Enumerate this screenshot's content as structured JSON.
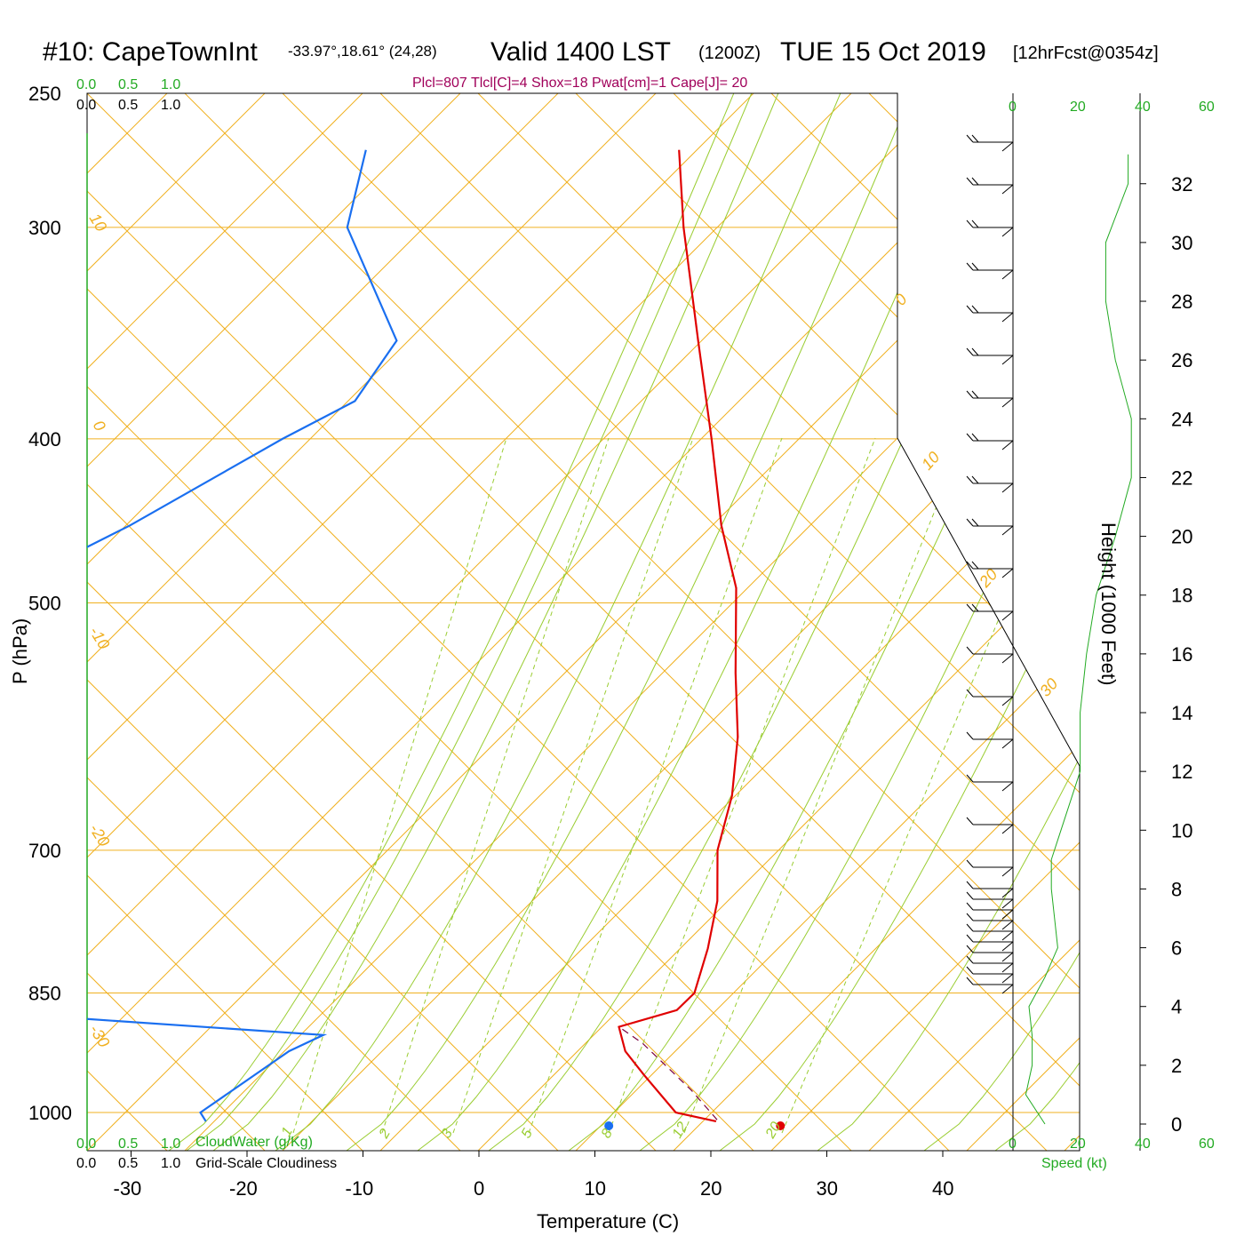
{
  "header": {
    "station": "#10: CapeTownInt",
    "coords": "-33.97°,18.61° (24,28)",
    "valid": "Valid 1400 LST",
    "zulu": "(1200Z)",
    "date": "TUE 15 Oct 2019",
    "forecast": "[12hrFcst@0354z]"
  },
  "params_line": "Plcl=807 Tlcl[C]=4 Shox=18 Pwat[cm]=1 Cape[J]= 20",
  "labels": {
    "cloudwater": "CloudWater (g/Kg)",
    "cloudiness": "Grid-Scale Cloudiness",
    "speed": "Speed (kt)",
    "height": "Height (1000 Feet)",
    "pressure": "P (hPa)",
    "temperature": "Temperature (C)"
  },
  "scale_ticks": [
    "0.0",
    "0.5",
    "1.0"
  ],
  "speed_ticks": [
    "0",
    "20",
    "40",
    "60"
  ],
  "colors": {
    "temperature": "#e00000",
    "dewpoint": "#1a6ff0",
    "isotherm": "#f0b020",
    "adiabat": "#9acd32",
    "speed_profile": "#22aa22",
    "params": "#a0005a"
  },
  "chart_data": {
    "type": "line",
    "title": "#10: CapeTownInt  Valid 1400 LST (1200Z) TUE 15 Oct 2019",
    "xlabel": "Temperature (C)",
    "ylabel": "P (hPa)",
    "xlim": [
      -35,
      35
    ],
    "ylim": [
      1050,
      250
    ],
    "y_scale": "log (pressure)",
    "x_ticks": [
      -30,
      -20,
      -10,
      0,
      10,
      20,
      30,
      40
    ],
    "y_ticks": [
      250,
      300,
      400,
      500,
      700,
      850,
      1000
    ],
    "height_ticks": [
      0,
      2,
      4,
      6,
      8,
      10,
      12,
      14,
      16,
      18,
      20,
      22,
      24,
      26,
      28,
      30,
      32
    ],
    "isotherm_labels": [
      {
        "value": "10"
      },
      {
        "value": "0"
      },
      {
        "value": "-10"
      },
      {
        "value": "-20"
      },
      {
        "value": "-30"
      },
      {
        "value": "0"
      },
      {
        "value": "10"
      },
      {
        "value": "20"
      },
      {
        "value": "30"
      }
    ],
    "mixing_ratio_labels": [
      "1",
      "2",
      "3",
      "5",
      "8",
      "12",
      "20"
    ],
    "series": [
      {
        "name": "Temperature",
        "points": [
          {
            "p": 270,
            "t": -40
          },
          {
            "p": 300,
            "t": -35
          },
          {
            "p": 350,
            "t": -27
          },
          {
            "p": 400,
            "t": -20
          },
          {
            "p": 450,
            "t": -14
          },
          {
            "p": 490,
            "t": -9
          },
          {
            "p": 550,
            "t": -4
          },
          {
            "p": 600,
            "t": 0
          },
          {
            "p": 650,
            "t": 3
          },
          {
            "p": 700,
            "t": 5
          },
          {
            "p": 750,
            "t": 8
          },
          {
            "p": 800,
            "t": 10
          },
          {
            "p": 850,
            "t": 11.5
          },
          {
            "p": 870,
            "t": 11
          },
          {
            "p": 890,
            "t": 7
          },
          {
            "p": 920,
            "t": 9
          },
          {
            "p": 950,
            "t": 12
          },
          {
            "p": 1000,
            "t": 17
          },
          {
            "p": 1012,
            "t": 21
          }
        ]
      },
      {
        "name": "Dewpoint",
        "points": [
          {
            "p": 270,
            "t": -67
          },
          {
            "p": 300,
            "t": -64
          },
          {
            "p": 350,
            "t": -53
          },
          {
            "p": 380,
            "t": -53
          },
          {
            "p": 400,
            "t": -57
          },
          {
            "p": 450,
            "t": -65
          },
          {
            "p": 490,
            "t": -72
          },
          {
            "p": 530,
            "t": -70
          },
          {
            "p": 580,
            "t": -60
          },
          {
            "p": 600,
            "t": -58
          },
          {
            "p": 650,
            "t": -62
          },
          {
            "p": 700,
            "t": -74
          },
          {
            "p": 750,
            "t": -90
          },
          {
            "p": 810,
            "t": -88
          },
          {
            "p": 850,
            "t": -70
          },
          {
            "p": 860,
            "t": -79
          },
          {
            "p": 880,
            "t": -40
          },
          {
            "p": 900,
            "t": -18
          },
          {
            "p": 920,
            "t": -20
          },
          {
            "p": 1000,
            "t": -24
          },
          {
            "p": 1012,
            "t": -23
          }
        ]
      },
      {
        "name": "Parcel",
        "points": [
          {
            "p": 1010,
            "t": 21
          },
          {
            "p": 970,
            "t": 17
          },
          {
            "p": 910,
            "t": 10
          },
          {
            "p": 890,
            "t": 7
          }
        ]
      }
    ],
    "surface_points": [
      {
        "name": "surface-dewpoint",
        "t": 11.2
      },
      {
        "name": "surface-temperature",
        "t": 26
      }
    ],
    "wind_speed_kt": [
      {
        "h": 0,
        "v": 10
      },
      {
        "h": 1,
        "v": 4
      },
      {
        "h": 2,
        "v": 6
      },
      {
        "h": 3,
        "v": 6
      },
      {
        "h": 4,
        "v": 5
      },
      {
        "h": 5,
        "v": 10
      },
      {
        "h": 6,
        "v": 14
      },
      {
        "h": 7,
        "v": 13
      },
      {
        "h": 8,
        "v": 12
      },
      {
        "h": 9,
        "v": 12
      },
      {
        "h": 10,
        "v": 15
      },
      {
        "h": 12,
        "v": 21
      },
      {
        "h": 14,
        "v": 21
      },
      {
        "h": 16,
        "v": 23
      },
      {
        "h": 18,
        "v": 26
      },
      {
        "h": 20,
        "v": 32
      },
      {
        "h": 22,
        "v": 37
      },
      {
        "h": 24,
        "v": 37
      },
      {
        "h": 26,
        "v": 32
      },
      {
        "h": 28,
        "v": 29
      },
      {
        "h": 30,
        "v": 29
      },
      {
        "h": 32,
        "v": 36
      },
      {
        "h": 33,
        "v": 36
      }
    ],
    "wind_barbs_count": 28
  }
}
